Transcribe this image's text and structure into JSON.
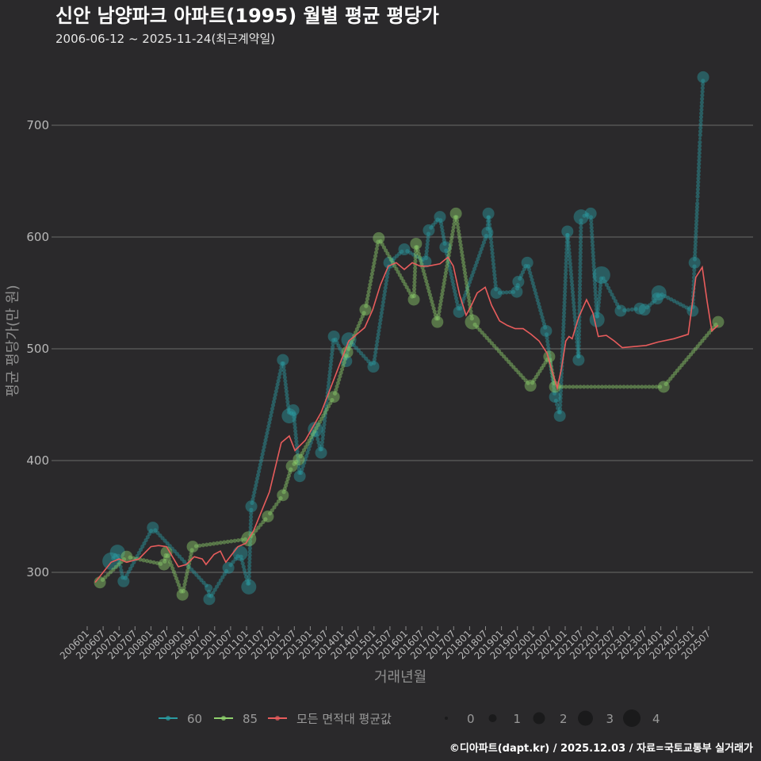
{
  "chart_data": {
    "type": "scatter",
    "title": "신안 남양파크 아파트(1995) 월별 평균 평당가",
    "subtitle": "2006-06-12 ~ 2025-11-24(최근계약일)",
    "xlabel": "거래년월",
    "ylabel": "평균 평당가(만 원)",
    "ylim": [
      250,
      760
    ],
    "yticks": [
      300,
      400,
      500,
      600,
      700
    ],
    "xlim_year": [
      2005.2,
      2026.0
    ],
    "xticks": [
      "200601",
      "200607",
      "200701",
      "200707",
      "200801",
      "200807",
      "200901",
      "200907",
      "201001",
      "201007",
      "201101",
      "201107",
      "201201",
      "201207",
      "201301",
      "201307",
      "201401",
      "201407",
      "201501",
      "201507",
      "201601",
      "201607",
      "201701",
      "201707",
      "201801",
      "201807",
      "201901",
      "201907",
      "202001",
      "202007",
      "202101",
      "202107",
      "202201",
      "202207",
      "202301",
      "202307",
      "202401",
      "202407",
      "202501",
      "202507"
    ],
    "grid": true,
    "legend_placement": "bottom",
    "series": [
      {
        "name": "60",
        "color": "#2a9ba1",
        "point_format": "[decimal_year, value, count]",
        "points": [
          [
            2006.75,
            310,
            4
          ],
          [
            2006.95,
            318,
            3
          ],
          [
            2007.14,
            292,
            2
          ],
          [
            2008.06,
            340,
            2
          ],
          [
            2009.81,
            286,
            1
          ],
          [
            2009.83,
            276,
            2
          ],
          [
            2010.43,
            304,
            2
          ],
          [
            2010.8,
            317,
            3
          ],
          [
            2011.07,
            287,
            3
          ],
          [
            2011.15,
            359,
            2
          ],
          [
            2012.14,
            490,
            2
          ],
          [
            2012.34,
            440,
            3
          ],
          [
            2012.47,
            445,
            2
          ],
          [
            2012.67,
            386,
            2
          ],
          [
            2013.16,
            428,
            3
          ],
          [
            2013.34,
            407,
            2
          ],
          [
            2013.74,
            511,
            2
          ],
          [
            2014.13,
            489,
            2
          ],
          [
            2014.21,
            508,
            3
          ],
          [
            2014.98,
            484,
            2
          ],
          [
            2015.48,
            577,
            2
          ],
          [
            2015.95,
            589,
            2
          ],
          [
            2016.62,
            578,
            2
          ],
          [
            2016.72,
            606,
            2
          ],
          [
            2017.07,
            618,
            2
          ],
          [
            2017.24,
            591,
            2
          ],
          [
            2017.67,
            533,
            2
          ],
          [
            2018.56,
            604,
            2
          ],
          [
            2018.59,
            621,
            2
          ],
          [
            2018.84,
            550,
            2
          ],
          [
            2019.48,
            551,
            2
          ],
          [
            2019.53,
            560,
            2
          ],
          [
            2019.81,
            577,
            2
          ],
          [
            2020.4,
            516,
            2
          ],
          [
            2020.68,
            457,
            2
          ],
          [
            2020.83,
            440,
            2
          ],
          [
            2021.07,
            605,
            2
          ],
          [
            2021.42,
            490,
            2
          ],
          [
            2021.5,
            618,
            3
          ],
          [
            2021.8,
            621,
            2
          ],
          [
            2022.0,
            526,
            3
          ],
          [
            2022.14,
            566,
            4
          ],
          [
            2022.74,
            534,
            2
          ],
          [
            2023.34,
            536,
            2
          ],
          [
            2023.49,
            535,
            2
          ],
          [
            2023.89,
            545,
            2
          ],
          [
            2023.94,
            550,
            3
          ],
          [
            2025.0,
            534,
            2
          ],
          [
            2025.06,
            577,
            2
          ],
          [
            2025.15,
            633,
            0
          ],
          [
            2025.23,
            688,
            0
          ],
          [
            2025.33,
            743,
            2
          ]
        ]
      },
      {
        "name": "85",
        "color": "#8fd16c",
        "point_format": "[decimal_year, value, count]",
        "points": [
          [
            2006.4,
            291,
            2
          ],
          [
            2007.24,
            314,
            2
          ],
          [
            2008.41,
            307,
            2
          ],
          [
            2008.49,
            318,
            2
          ],
          [
            2008.99,
            280,
            2
          ],
          [
            2009.31,
            323,
            2
          ],
          [
            2011.07,
            330,
            3
          ],
          [
            2011.67,
            350,
            2
          ],
          [
            2012.14,
            369,
            2
          ],
          [
            2012.42,
            395,
            2
          ],
          [
            2012.64,
            401,
            2
          ],
          [
            2013.74,
            457,
            2
          ],
          [
            2014.16,
            497,
            2
          ],
          [
            2014.73,
            535,
            2
          ],
          [
            2015.15,
            599,
            2
          ],
          [
            2016.25,
            544,
            2
          ],
          [
            2016.32,
            594,
            2
          ],
          [
            2016.99,
            524,
            2
          ],
          [
            2017.57,
            621,
            2
          ],
          [
            2018.09,
            524,
            3
          ],
          [
            2019.91,
            467,
            2
          ],
          [
            2020.5,
            493,
            2
          ],
          [
            2020.68,
            466,
            2
          ],
          [
            2024.09,
            466,
            2
          ],
          [
            2025.8,
            524,
            2
          ]
        ]
      },
      {
        "name": "모든 면적대 평균값",
        "color": "#e85c5c",
        "point_format": "[decimal_year, value]",
        "points": [
          [
            2006.25,
            291
          ],
          [
            2006.75,
            309
          ],
          [
            2007.0,
            312
          ],
          [
            2007.24,
            309
          ],
          [
            2007.62,
            312
          ],
          [
            2008.0,
            323
          ],
          [
            2008.24,
            324
          ],
          [
            2008.49,
            323
          ],
          [
            2008.86,
            305
          ],
          [
            2009.11,
            307
          ],
          [
            2009.36,
            314
          ],
          [
            2009.61,
            312
          ],
          [
            2009.73,
            307
          ],
          [
            2009.98,
            316
          ],
          [
            2010.18,
            319
          ],
          [
            2010.35,
            309
          ],
          [
            2010.73,
            323
          ],
          [
            2010.98,
            326
          ],
          [
            2011.22,
            337
          ],
          [
            2011.72,
            372
          ],
          [
            2012.09,
            416
          ],
          [
            2012.34,
            422
          ],
          [
            2012.52,
            409
          ],
          [
            2012.84,
            418
          ],
          [
            2013.34,
            443
          ],
          [
            2013.84,
            480
          ],
          [
            2014.21,
            507
          ],
          [
            2014.71,
            519
          ],
          [
            2014.96,
            535
          ],
          [
            2015.2,
            557
          ],
          [
            2015.45,
            574
          ],
          [
            2015.7,
            577
          ],
          [
            2015.95,
            571
          ],
          [
            2016.2,
            577
          ],
          [
            2016.45,
            574
          ],
          [
            2016.7,
            574
          ],
          [
            2017.07,
            576
          ],
          [
            2017.32,
            582
          ],
          [
            2017.49,
            574
          ],
          [
            2017.69,
            548
          ],
          [
            2017.89,
            530
          ],
          [
            2018.06,
            539
          ],
          [
            2018.24,
            550
          ],
          [
            2018.49,
            555
          ],
          [
            2018.69,
            539
          ],
          [
            2018.94,
            525
          ],
          [
            2019.18,
            521
          ],
          [
            2019.43,
            518
          ],
          [
            2019.68,
            518
          ],
          [
            2019.93,
            513
          ],
          [
            2020.18,
            507
          ],
          [
            2020.43,
            496
          ],
          [
            2020.6,
            479
          ],
          [
            2020.75,
            465
          ],
          [
            2020.88,
            482
          ],
          [
            2021.02,
            507
          ],
          [
            2021.12,
            511
          ],
          [
            2021.22,
            509
          ],
          [
            2021.42,
            528
          ],
          [
            2021.67,
            544
          ],
          [
            2021.87,
            532
          ],
          [
            2022.04,
            511
          ],
          [
            2022.29,
            512
          ],
          [
            2022.54,
            507
          ],
          [
            2022.79,
            501
          ],
          [
            2023.16,
            502
          ],
          [
            2023.54,
            503
          ],
          [
            2023.91,
            506
          ],
          [
            2024.41,
            509
          ],
          [
            2024.86,
            513
          ],
          [
            2025.1,
            564
          ],
          [
            2025.3,
            573
          ],
          [
            2025.45,
            543
          ],
          [
            2025.6,
            516
          ],
          [
            2025.8,
            521
          ]
        ]
      }
    ],
    "size_legend": {
      "title": "",
      "values": [
        "0",
        "1",
        "2",
        "3",
        "4"
      ]
    }
  },
  "footer": "©디아파트(dapt.kr) / 2025.12.03 / 자료=국토교통부 실거래가"
}
